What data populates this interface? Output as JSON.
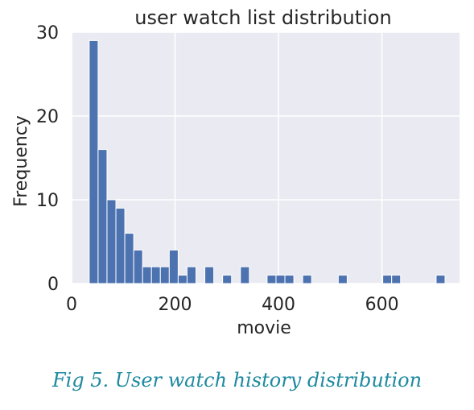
{
  "chart_data": {
    "type": "bar",
    "title": "user watch list distribution",
    "xlabel": "movie",
    "ylabel": "Frequency",
    "xlim": [
      0,
      750
    ],
    "ylim": [
      0,
      30
    ],
    "xticks": [
      0,
      200,
      400,
      600
    ],
    "yticks": [
      0,
      10,
      20,
      30
    ],
    "grid": true,
    "bar_color": "#4c72b0",
    "background_color": "#eaeaf2",
    "bin_width": 17.2,
    "bins": [
      {
        "start": 34.0,
        "count": 29
      },
      {
        "start": 51.2,
        "count": 16
      },
      {
        "start": 68.4,
        "count": 10
      },
      {
        "start": 85.6,
        "count": 9
      },
      {
        "start": 102.8,
        "count": 6
      },
      {
        "start": 120.0,
        "count": 4
      },
      {
        "start": 137.2,
        "count": 2
      },
      {
        "start": 154.4,
        "count": 2
      },
      {
        "start": 171.6,
        "count": 2
      },
      {
        "start": 188.8,
        "count": 4
      },
      {
        "start": 206.0,
        "count": 1
      },
      {
        "start": 223.2,
        "count": 2
      },
      {
        "start": 257.6,
        "count": 2
      },
      {
        "start": 292.0,
        "count": 1
      },
      {
        "start": 326.4,
        "count": 2
      },
      {
        "start": 378.0,
        "count": 1
      },
      {
        "start": 395.2,
        "count": 1
      },
      {
        "start": 412.4,
        "count": 1
      },
      {
        "start": 446.8,
        "count": 1
      },
      {
        "start": 515.6,
        "count": 1
      },
      {
        "start": 601.6,
        "count": 1
      },
      {
        "start": 618.8,
        "count": 1
      },
      {
        "start": 704.8,
        "count": 1
      }
    ]
  },
  "caption": "Fig 5. User watch history distribution"
}
